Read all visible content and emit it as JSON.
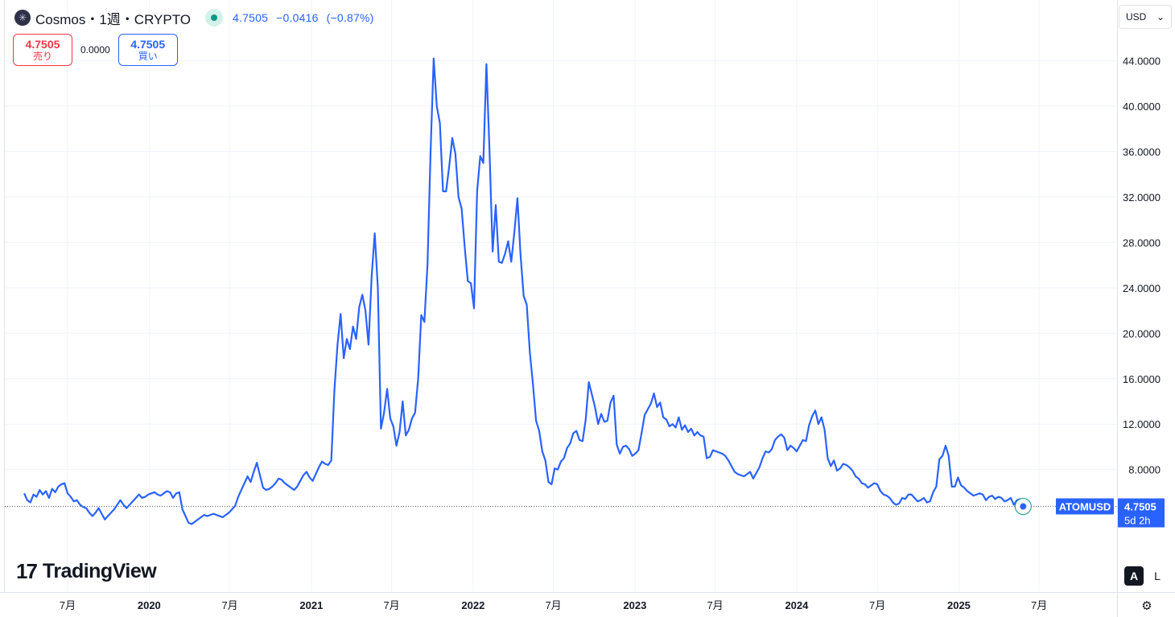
{
  "header": {
    "logo_icon": "cosmos-logo-icon",
    "title": "Cosmos・1週・CRYPTO",
    "last": "4.7505",
    "change": "−0.0416",
    "change_pct": "(−0.87%)"
  },
  "trade": {
    "sell_price": "4.7505",
    "sell_label": "売り",
    "spread": "0.0000",
    "buy_price": "4.7505",
    "buy_label": "買い"
  },
  "currency": {
    "value": "USD",
    "icon": "chevron-down-icon"
  },
  "branding": {
    "mark": "17",
    "name": "TradingView"
  },
  "scale_buttons": {
    "auto": "A",
    "log": "L"
  },
  "settings_icon": "gear-icon",
  "price_label": {
    "symbol": "ATOMUSD",
    "price": "4.7505",
    "countdown": "5d 2h"
  },
  "colors": {
    "line": "#2962ff",
    "grid": "#f0f3fa",
    "sell": "#f23645",
    "buy": "#2962ff",
    "live": "#089981"
  },
  "chart_data": {
    "type": "line",
    "series": [
      {
        "values": [
          5.9,
          5.3,
          5.1,
          5.8,
          5.6,
          6.2,
          5.8,
          6.1,
          5.5,
          6.3,
          6.0,
          6.5,
          6.7,
          6.8,
          5.9,
          5.6,
          5.2,
          5.3,
          4.9,
          4.7,
          4.6,
          4.2,
          3.9,
          4.2,
          4.6,
          4.1,
          3.6,
          3.9,
          4.2,
          4.5,
          4.9,
          5.3,
          4.9,
          4.6,
          4.9,
          5.2,
          5.5,
          5.8,
          5.5,
          5.6,
          5.8,
          5.9,
          6.0,
          5.8,
          5.7,
          5.9,
          6.1,
          6.0,
          5.5,
          5.9,
          6.0,
          4.5,
          3.9,
          3.3,
          3.2,
          3.4,
          3.6,
          3.8,
          4.0,
          3.9,
          4.0,
          4.1,
          4.0,
          3.9,
          3.8,
          4.0,
          4.2,
          4.5,
          4.8,
          5.6,
          6.2,
          6.8,
          7.4,
          6.9,
          7.8,
          8.6,
          7.5,
          6.4,
          6.2,
          6.3,
          6.5,
          6.8,
          7.2,
          7.1,
          6.8,
          6.6,
          6.4,
          6.2,
          6.5,
          7.0,
          7.5,
          7.8,
          7.3,
          7.0,
          7.6,
          8.2,
          8.7,
          8.5,
          8.4,
          8.8,
          15.0,
          19.0,
          21.7,
          17.8,
          19.5,
          18.6,
          20.6,
          19.5,
          22.3,
          23.4,
          22.0,
          19.0,
          25.0,
          28.8,
          24.0,
          11.6,
          13.0,
          15.1,
          12.5,
          11.8,
          10.1,
          11.3,
          14.0,
          11.0,
          11.5,
          12.5,
          13.0,
          16.0,
          21.6,
          21.0,
          26.0,
          36.0,
          44.2,
          40.0,
          38.5,
          32.5,
          32.5,
          34.7,
          37.2,
          35.8,
          32.0,
          31.0,
          27.6,
          24.6,
          24.4,
          22.2,
          32.5,
          35.6,
          35.0,
          43.7,
          36.0,
          27.2,
          31.3,
          26.3,
          26.2,
          27.0,
          28.1,
          26.3,
          28.9,
          31.9,
          26.9,
          23.3,
          22.5,
          18.3,
          15.5,
          12.3,
          11.4,
          9.6,
          8.8,
          6.9,
          6.7,
          8.1,
          8.0,
          8.7,
          9.0,
          9.9,
          10.3,
          11.2,
          11.4,
          10.6,
          10.5,
          12.4,
          15.7,
          14.6,
          13.5,
          12.0,
          12.9,
          12.2,
          12.3,
          13.9,
          14.5,
          10.2,
          9.4,
          10.0,
          10.1,
          9.8,
          9.2,
          9.4,
          9.7,
          11.2,
          12.8,
          13.3,
          13.8,
          14.7,
          13.5,
          13.9,
          12.6,
          12.4,
          11.8,
          12.0,
          11.7,
          12.6,
          11.5,
          11.9,
          11.3,
          11.6,
          11.0,
          11.3,
          11.0,
          10.9,
          9.0,
          9.1,
          9.7,
          9.6,
          9.5,
          9.4,
          9.2,
          8.8,
          8.3,
          7.8,
          7.6,
          7.5,
          7.4,
          7.6,
          7.8,
          7.2,
          7.7,
          8.2,
          9.0,
          9.6,
          9.5,
          9.8,
          10.6,
          10.9,
          11.1,
          10.8,
          9.7,
          10.1,
          9.9,
          9.6,
          10.1,
          10.6,
          10.5,
          11.9,
          12.7,
          13.2,
          12.0,
          12.6,
          11.5,
          9.0,
          8.3,
          8.8,
          7.9,
          8.1,
          8.5,
          8.4,
          8.2,
          7.9,
          7.4,
          7.2,
          6.8,
          6.7,
          6.4,
          6.6,
          6.8,
          6.7,
          6.1,
          5.8,
          5.7,
          5.5,
          5.1,
          4.9,
          5.0,
          5.5,
          5.4,
          5.8,
          5.8,
          5.5,
          5.2,
          5.3,
          5.5,
          5.1,
          5.2,
          6.0,
          6.5,
          8.9,
          9.2,
          10.1,
          9.2,
          6.5,
          6.5,
          7.3,
          6.6,
          6.4,
          6.1,
          5.9,
          5.7,
          5.8,
          5.9,
          5.8,
          5.3,
          5.6,
          5.7,
          5.4,
          5.6,
          5.5,
          5.2,
          5.3,
          5.5,
          4.9,
          5.3,
          5.4,
          4.7505
        ]
      }
    ],
    "x_start": "2019-03-25",
    "x_interval_days": 7,
    "y_axis": {
      "min": 0,
      "max": 46,
      "ticks": [
        "44.0000",
        "40.0000",
        "36.0000",
        "32.0000",
        "28.0000",
        "24.0000",
        "20.0000",
        "16.0000",
        "12.0000",
        "8.0000"
      ]
    },
    "x_axis": {
      "ticks": [
        {
          "label": "7月",
          "date": "2019-07-01",
          "bold": false
        },
        {
          "label": "2020",
          "date": "2020-01-01",
          "bold": true
        },
        {
          "label": "7月",
          "date": "2020-07-01",
          "bold": false
        },
        {
          "label": "2021",
          "date": "2021-01-01",
          "bold": true
        },
        {
          "label": "7月",
          "date": "2021-07-01",
          "bold": false
        },
        {
          "label": "2022",
          "date": "2022-01-01",
          "bold": true
        },
        {
          "label": "7月",
          "date": "2022-07-01",
          "bold": false
        },
        {
          "label": "2023",
          "date": "2023-01-01",
          "bold": true
        },
        {
          "label": "7月",
          "date": "2023-07-01",
          "bold": false
        },
        {
          "label": "2024",
          "date": "2024-01-01",
          "bold": true
        },
        {
          "label": "7月",
          "date": "2024-07-01",
          "bold": false
        },
        {
          "label": "2025",
          "date": "2025-01-01",
          "bold": true
        },
        {
          "label": "7月",
          "date": "2025-07-01",
          "bold": false
        }
      ]
    },
    "grid": true,
    "current_price": 4.7505
  }
}
